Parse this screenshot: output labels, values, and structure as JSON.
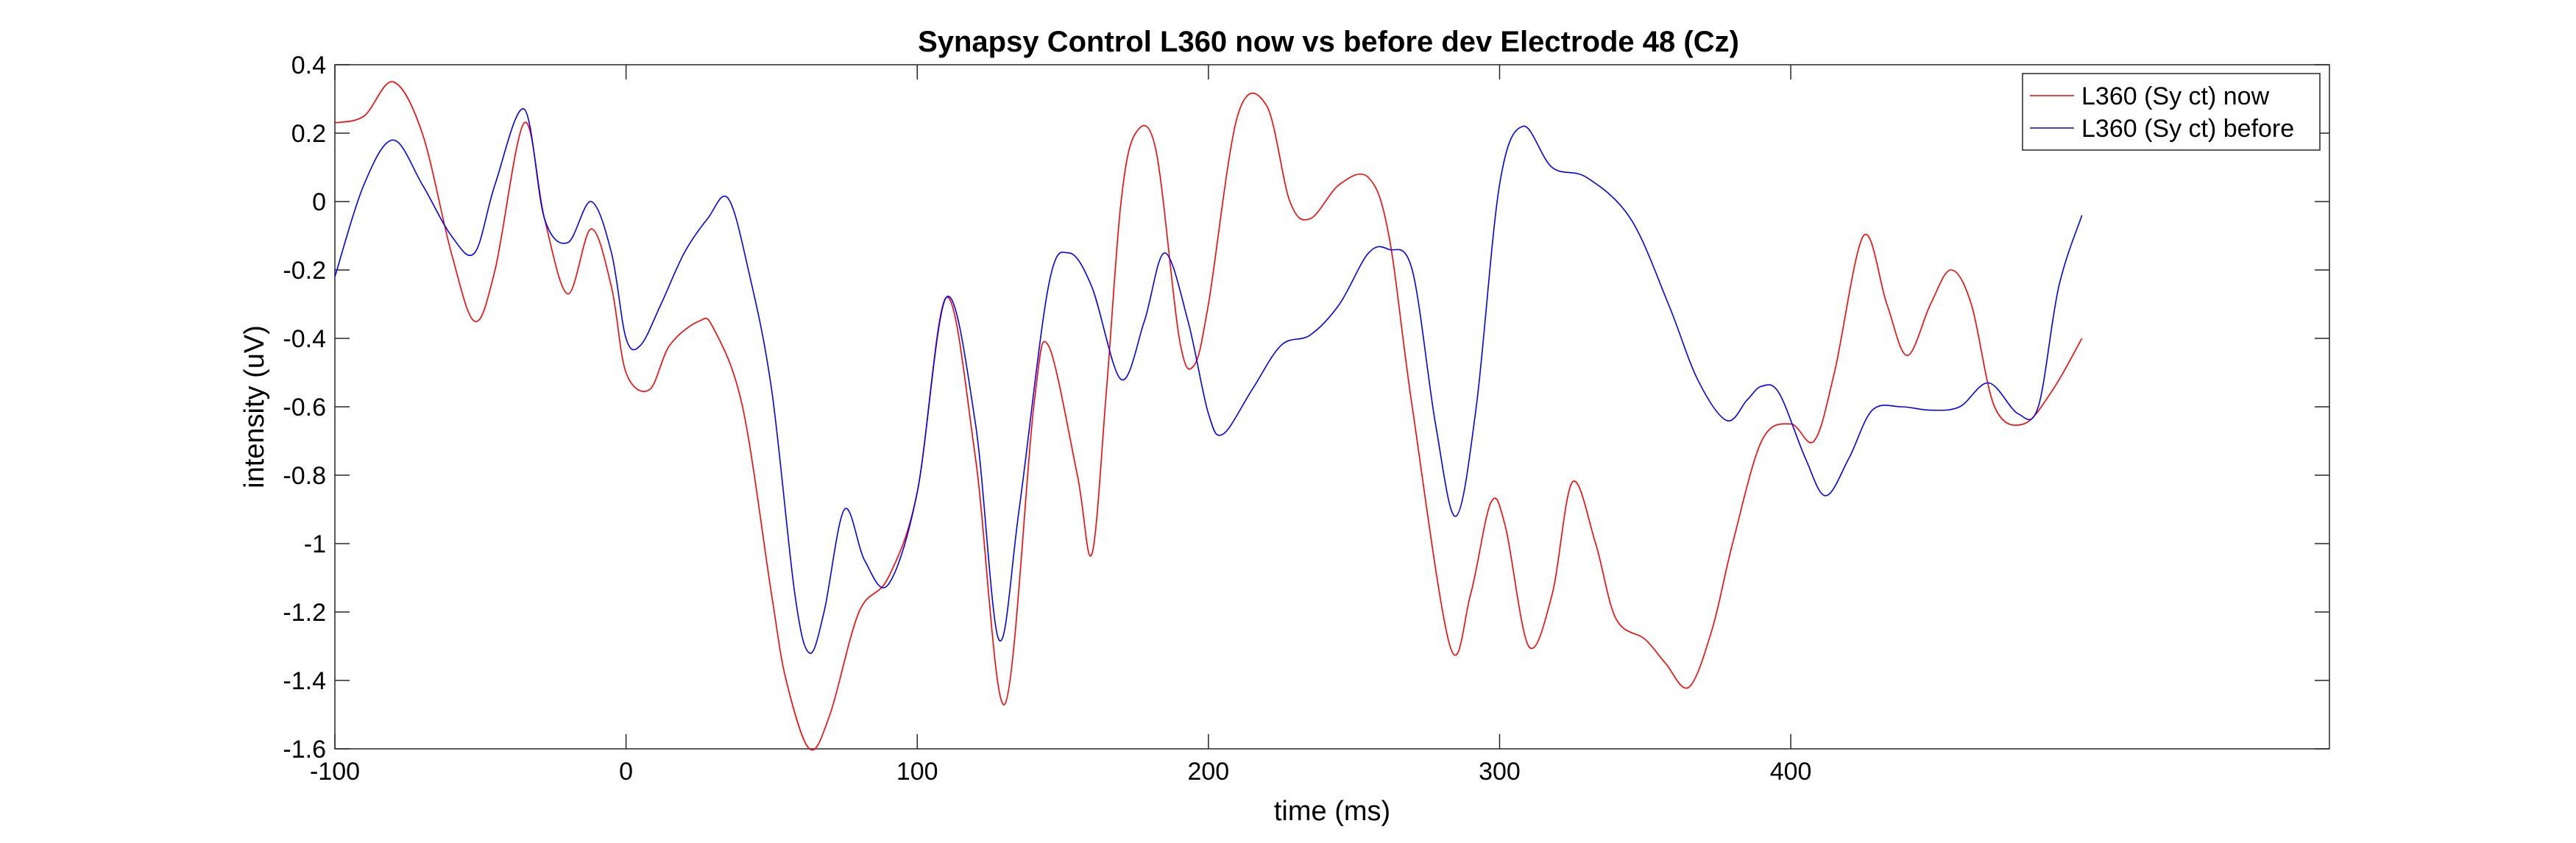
{
  "chart_data": {
    "type": "line",
    "title": "Synapsy Control L360 now vs before dev Electrode 48 (Cz)",
    "xlabel": "time (ms)",
    "ylabel": "intensity (uV)",
    "xlim": [
      -100,
      585
    ],
    "ylim": [
      -1.6,
      0.4
    ],
    "xticks": [
      -100,
      0,
      100,
      200,
      300,
      400
    ],
    "yticks": [
      0.4,
      0.2,
      0,
      -0.2,
      -0.4,
      -0.6,
      -0.8,
      -1,
      -1.2,
      -1.4,
      -1.6
    ],
    "xtick_labels": [
      "-100",
      "0",
      "100",
      "200",
      "300",
      "400"
    ],
    "ytick_labels": [
      "0.4",
      "0.2",
      "0",
      "-0.2",
      "-0.4",
      "-0.6",
      "-0.8",
      "-1",
      "-1.2",
      "-1.4",
      "-1.6"
    ],
    "grid": false,
    "legend_position": "top-right",
    "series": [
      {
        "name": "L360 (Sy ct) now",
        "color": "#ff0000",
        "x": [
          -100,
          -90,
          -80,
          -70,
          -60,
          -52,
          -45,
          -35,
          -28,
          -20,
          -12,
          -5,
          0,
          8,
          15,
          25,
          30,
          40,
          50,
          55,
          63,
          70,
          80,
          90,
          100,
          110,
          120,
          130,
          140,
          145,
          155,
          160,
          165,
          170,
          175,
          182,
          190,
          195,
          200,
          210,
          220,
          228,
          235,
          245,
          255,
          262,
          270,
          283,
          290,
          297,
          302,
          310,
          318,
          325,
          333,
          340,
          350,
          357,
          365,
          373,
          380,
          390,
          400,
          408,
          415,
          425,
          433,
          440,
          448,
          455,
          462,
          470,
          480,
          490,
          500
        ],
        "values": [
          0.23,
          0.25,
          0.35,
          0.2,
          -0.15,
          -0.35,
          -0.2,
          0.23,
          -0.05,
          -0.27,
          -0.08,
          -0.25,
          -0.5,
          -0.55,
          -0.42,
          -0.35,
          -0.37,
          -0.6,
          -1.15,
          -1.4,
          -1.6,
          -1.5,
          -1.2,
          -1.1,
          -0.85,
          -0.28,
          -0.75,
          -1.47,
          -0.6,
          -0.42,
          -0.8,
          -1.03,
          -0.55,
          0.0,
          0.2,
          0.15,
          -0.4,
          -0.48,
          -0.3,
          0.25,
          0.28,
          0.0,
          -0.05,
          0.05,
          0.07,
          -0.1,
          -0.6,
          -1.3,
          -1.15,
          -0.88,
          -0.95,
          -1.3,
          -1.15,
          -0.82,
          -1.0,
          -1.22,
          -1.28,
          -1.35,
          -1.42,
          -1.25,
          -1.0,
          -0.7,
          -0.65,
          -0.7,
          -0.5,
          -0.1,
          -0.3,
          -0.45,
          -0.3,
          -0.2,
          -0.3,
          -0.6,
          -0.65,
          -0.55,
          -0.4
        ]
      },
      {
        "name": "L360 (Sy ct) before",
        "color": "#0000ff",
        "x": [
          -100,
          -90,
          -80,
          -70,
          -60,
          -52,
          -45,
          -35,
          -28,
          -20,
          -12,
          -5,
          0,
          5,
          12,
          20,
          28,
          35,
          42,
          50,
          58,
          63,
          68,
          75,
          82,
          90,
          100,
          110,
          120,
          128,
          135,
          145,
          152,
          160,
          170,
          178,
          185,
          193,
          200,
          205,
          215,
          225,
          235,
          245,
          255,
          262,
          270,
          278,
          285,
          292,
          300,
          308,
          318,
          330,
          345,
          358,
          368,
          378,
          385,
          390,
          396,
          405,
          412,
          420,
          428,
          438,
          448,
          458,
          468,
          478,
          485,
          492,
          500
        ],
        "values": [
          -0.22,
          0.05,
          0.18,
          0.05,
          -0.1,
          -0.15,
          0.05,
          0.27,
          -0.05,
          -0.12,
          0.0,
          -0.15,
          -0.4,
          -0.42,
          -0.3,
          -0.15,
          -0.05,
          0.01,
          -0.2,
          -0.55,
          -1.15,
          -1.32,
          -1.2,
          -0.9,
          -1.05,
          -1.12,
          -0.85,
          -0.28,
          -0.65,
          -1.28,
          -0.9,
          -0.25,
          -0.15,
          -0.25,
          -0.52,
          -0.35,
          -0.15,
          -0.35,
          -0.62,
          -0.68,
          -0.55,
          -0.42,
          -0.39,
          -0.3,
          -0.15,
          -0.14,
          -0.2,
          -0.65,
          -0.92,
          -0.6,
          0.05,
          0.22,
          0.1,
          0.07,
          -0.05,
          -0.3,
          -0.52,
          -0.64,
          -0.58,
          -0.54,
          -0.56,
          -0.75,
          -0.86,
          -0.75,
          -0.61,
          -0.6,
          -0.61,
          -0.6,
          -0.53,
          -0.62,
          -0.6,
          -0.25,
          -0.04
        ]
      }
    ]
  }
}
